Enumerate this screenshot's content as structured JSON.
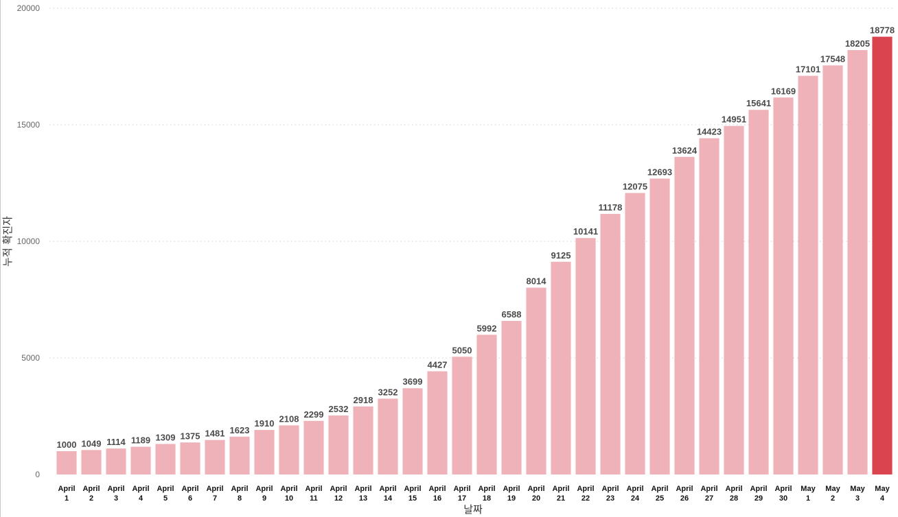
{
  "chart_data": {
    "type": "bar",
    "xlabel": "날짜",
    "ylabel": "누적 확진자",
    "ylim": [
      0,
      20000
    ],
    "yticks": [
      0,
      5000,
      10000,
      15000,
      20000
    ],
    "grid": "horizontal dotted",
    "colors": {
      "bar": "#eeb2b8",
      "highlight": "#d9444f"
    },
    "highlight_index": 33,
    "categories": [
      [
        "April",
        "1"
      ],
      [
        "April",
        "2"
      ],
      [
        "April",
        "3"
      ],
      [
        "April",
        "4"
      ],
      [
        "April",
        "5"
      ],
      [
        "April",
        "6"
      ],
      [
        "April",
        "7"
      ],
      [
        "April",
        "8"
      ],
      [
        "April",
        "9"
      ],
      [
        "April",
        "10"
      ],
      [
        "April",
        "11"
      ],
      [
        "April",
        "12"
      ],
      [
        "April",
        "13"
      ],
      [
        "April",
        "14"
      ],
      [
        "April",
        "15"
      ],
      [
        "April",
        "16"
      ],
      [
        "April",
        "17"
      ],
      [
        "April",
        "18"
      ],
      [
        "April",
        "19"
      ],
      [
        "April",
        "20"
      ],
      [
        "April",
        "21"
      ],
      [
        "April",
        "22"
      ],
      [
        "April",
        "23"
      ],
      [
        "April",
        "24"
      ],
      [
        "April",
        "25"
      ],
      [
        "April",
        "26"
      ],
      [
        "April",
        "27"
      ],
      [
        "April",
        "28"
      ],
      [
        "April",
        "29"
      ],
      [
        "April",
        "30"
      ],
      [
        "May",
        "1"
      ],
      [
        "May",
        "2"
      ],
      [
        "May",
        "3"
      ],
      [
        "May",
        "4"
      ]
    ],
    "values": [
      1000,
      1049,
      1114,
      1189,
      1309,
      1375,
      1481,
      1623,
      1910,
      2108,
      2299,
      2532,
      2918,
      3252,
      3699,
      4427,
      5050,
      5992,
      6588,
      8014,
      9125,
      10141,
      11178,
      12075,
      12693,
      13624,
      14423,
      14951,
      15641,
      16169,
      17101,
      17548,
      18205,
      18778
    ]
  }
}
